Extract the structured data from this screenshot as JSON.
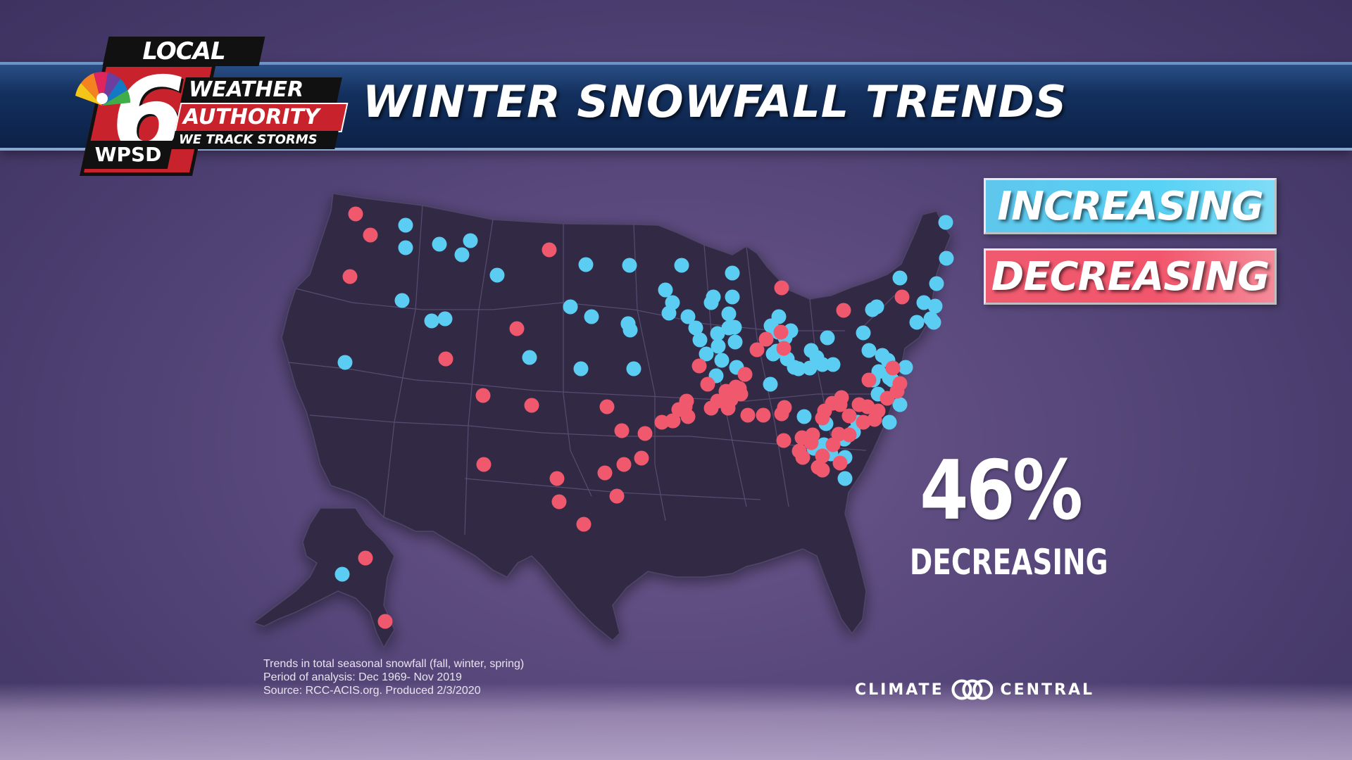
{
  "title": "WINTER SNOWFALL TRENDS",
  "logo": {
    "local": "LOCAL",
    "number": "6",
    "callsign": "WPSD",
    "weather": "WEATHER",
    "authority": "AUTHORITY",
    "tagline": "WE TRACK STORMS"
  },
  "legend": {
    "increasing": "INCREASING",
    "decreasing": "DECREASING",
    "colors": {
      "increasing": "#5bcdf2",
      "decreasing": "#f0586d"
    }
  },
  "stat": {
    "value": "46%",
    "label": "DECREASING"
  },
  "footnote": [
    "Trends in total seasonal snowfall (fall, winter, spring)",
    "Period of analysis: Dec 1969- Nov 2019",
    "Source: RCC-ACIS.org. Produced 2/3/2020"
  ],
  "credit": {
    "left": "CLIMATE",
    "right": "CENTRAL"
  },
  "stations": {
    "increasing_count": 91,
    "decreasing_count": 77
  }
}
